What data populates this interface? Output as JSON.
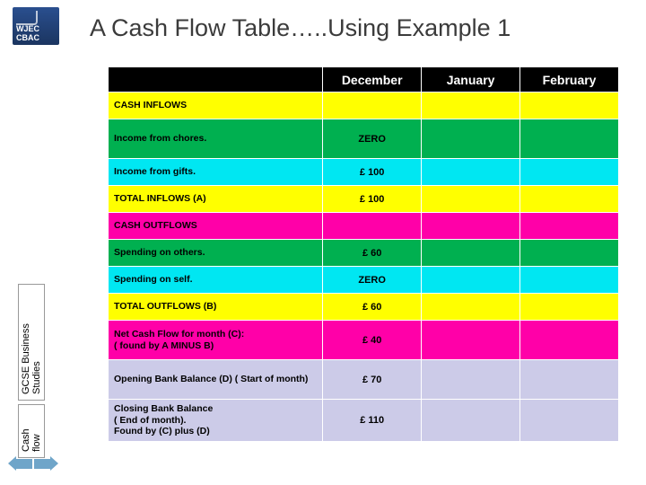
{
  "logo": {
    "line1": "WJEC",
    "line2": "CBAC"
  },
  "title": "A Cash Flow Table…..Using Example 1",
  "side": {
    "label1": "GCSE Business Studies",
    "label2": "Cash flow"
  },
  "colors": {
    "header_bg": "#000000",
    "header_text": "#ffffff",
    "yellow": "#ffff00",
    "green": "#00b050",
    "cyan": "#00e7f2",
    "magenta": "#ff00a8",
    "lavender": "#cccbe8",
    "border": "#ffffff"
  },
  "columns": {
    "label_width_pct": 42,
    "month_width_pct": 19.3
  },
  "months": [
    "December",
    "January",
    "February"
  ],
  "rows": [
    {
      "label": "CASH INFLOWS",
      "bg": "yellow",
      "vals": [
        "",
        "",
        ""
      ],
      "tall": false
    },
    {
      "label": "Income from chores.",
      "bg": "green",
      "vals": [
        "ZERO",
        "",
        ""
      ],
      "tall": true
    },
    {
      "label": "Income from gifts.",
      "bg": "cyan",
      "vals": [
        "£ 100",
        "",
        ""
      ],
      "tall": false
    },
    {
      "label": "TOTAL INFLOWS (A)",
      "bg": "yellow",
      "vals": [
        "£ 100",
        "",
        ""
      ],
      "tall": false
    },
    {
      "label": "CASH OUTFLOWS",
      "bg": "magenta",
      "vals": [
        "",
        "",
        ""
      ],
      "tall": false
    },
    {
      "label": "Spending on others.",
      "bg": "green",
      "vals": [
        "£ 60",
        "",
        ""
      ],
      "tall": false
    },
    {
      "label": "Spending on self.",
      "bg": "cyan",
      "vals": [
        "ZERO",
        "",
        ""
      ],
      "tall": false
    },
    {
      "label": "TOTAL OUTFLOWS (B)",
      "bg": "yellow",
      "vals": [
        "£ 60",
        "",
        ""
      ],
      "tall": false
    },
    {
      "label": "Net Cash Flow for month (C):\n( found by  A MINUS B)",
      "bg": "magenta",
      "vals": [
        "£ 40",
        "",
        ""
      ],
      "tall": true
    },
    {
      "label": "Opening Bank Balance (D)     (  Start of month)",
      "bg": "lavender",
      "vals": [
        "£ 70",
        "",
        ""
      ],
      "tall": true
    },
    {
      "label": "Closing Bank Balance\n( End of month).\nFound by (C) plus (D)",
      "bg": "lavender",
      "vals": [
        "£ 110",
        "",
        ""
      ],
      "tall": true
    }
  ]
}
